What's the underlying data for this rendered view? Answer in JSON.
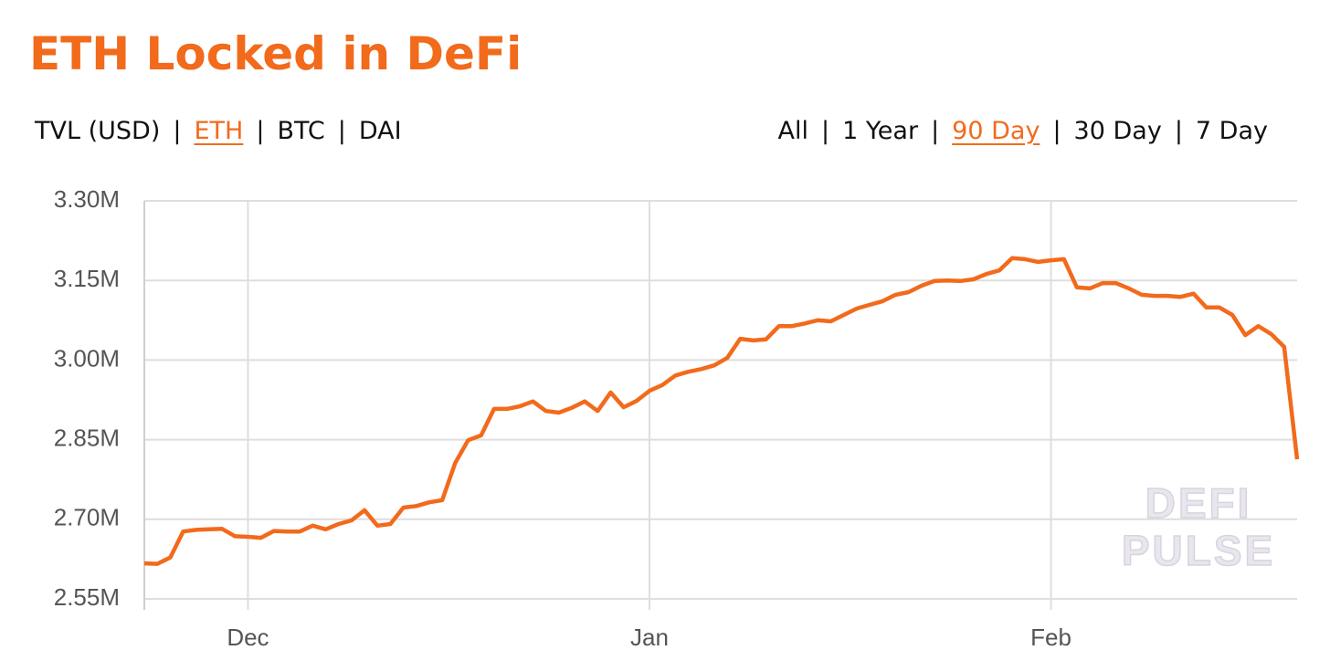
{
  "title": "ETH Locked in DeFi",
  "tabs": {
    "separator": "|",
    "left": [
      "TVL (USD)",
      "ETH",
      "BTC",
      "DAI"
    ],
    "left_active": 1,
    "right": [
      "All",
      "1 Year",
      "90 Day",
      "30 Day",
      "7 Day"
    ],
    "right_active": 2
  },
  "chart_data": {
    "type": "line",
    "color": "#f26a1b",
    "grid": true,
    "watermark": [
      "DEFI",
      "PULSE"
    ],
    "x": [
      -8,
      -7,
      -6,
      -5,
      -4,
      -3,
      -2,
      -1,
      0,
      1,
      2,
      3,
      4,
      5,
      6,
      7,
      8,
      9,
      10,
      11,
      12,
      13,
      14,
      15,
      16,
      17,
      18,
      19,
      20,
      21,
      22,
      23,
      24,
      25,
      26,
      27,
      28,
      29,
      30,
      31,
      32,
      33,
      34,
      35,
      36,
      37,
      38,
      39,
      40,
      41,
      42,
      43,
      44,
      45,
      46,
      47,
      48,
      49,
      50,
      51,
      52,
      53,
      54,
      55,
      56,
      57,
      58,
      59,
      60,
      61,
      62,
      63,
      64,
      65,
      66,
      67,
      68,
      69,
      70,
      71,
      72,
      73,
      74,
      75,
      76,
      77,
      78,
      79,
      80,
      81
    ],
    "values": [
      2617000,
      2616000,
      2628000,
      2677000,
      2680000,
      2681000,
      2682000,
      2668000,
      2667000,
      2665000,
      2678000,
      2677000,
      2677000,
      2688000,
      2681000,
      2691000,
      2698000,
      2717000,
      2688000,
      2691000,
      2722000,
      2725000,
      2732000,
      2736000,
      2806000,
      2849000,
      2858000,
      2908000,
      2908000,
      2913000,
      2922000,
      2904000,
      2901000,
      2910000,
      2922000,
      2904000,
      2939000,
      2911000,
      2923000,
      2942000,
      2953000,
      2971000,
      2978000,
      2983000,
      2990000,
      3004000,
      3040000,
      3037000,
      3039000,
      3064000,
      3064000,
      3069000,
      3075000,
      3073000,
      3085000,
      3097000,
      3104000,
      3111000,
      3123000,
      3128000,
      3140000,
      3149000,
      3150000,
      3149000,
      3152000,
      3162000,
      3169000,
      3192000,
      3190000,
      3185000,
      3188000,
      3190000,
      3137000,
      3135000,
      3145000,
      3145000,
      3135000,
      3123000,
      3121000,
      3121000,
      3119000,
      3125000,
      3099000,
      3099000,
      3085000,
      3047000,
      3064000,
      3049000,
      3025000,
      2813000
    ],
    "xlim": [
      -8,
      81
    ],
    "xticks": [
      {
        "value": 0,
        "label": "Dec"
      },
      {
        "value": 31,
        "label": "Jan"
      },
      {
        "value": 62,
        "label": "Feb"
      }
    ],
    "ylim": [
      2550000,
      3300000
    ],
    "yticks": [
      {
        "value": 2550000,
        "label": "2.55M"
      },
      {
        "value": 2700000,
        "label": "2.70M"
      },
      {
        "value": 2850000,
        "label": "2.85M"
      },
      {
        "value": 3000000,
        "label": "3.00M"
      },
      {
        "value": 3150000,
        "label": "3.15M"
      },
      {
        "value": 3300000,
        "label": "3.30M"
      }
    ]
  }
}
